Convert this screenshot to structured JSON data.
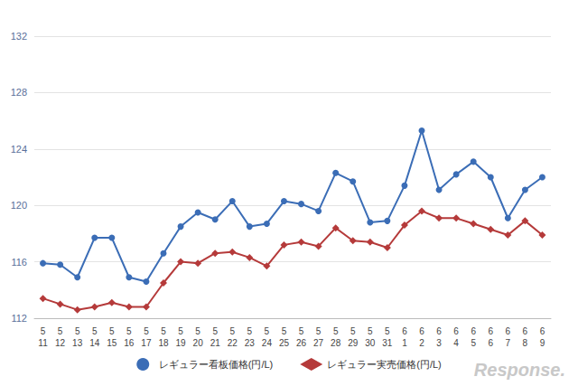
{
  "chart_data": {
    "type": "line",
    "categories": [
      "5\n11",
      "5\n12",
      "5\n13",
      "5\n14",
      "5\n15",
      "5\n16",
      "5\n17",
      "5\n18",
      "5\n19",
      "5\n20",
      "5\n21",
      "5\n22",
      "5\n23",
      "5\n24",
      "5\n25",
      "5\n26",
      "5\n27",
      "5\n28",
      "5\n29",
      "5\n30",
      "5\n31",
      "6\n1",
      "6\n2",
      "6\n3",
      "6\n4",
      "6\n5",
      "6\n6",
      "6\n7",
      "6\n8",
      "6\n9"
    ],
    "series": [
      {
        "name": "レギュラー看板価格(円/L)",
        "color": "#3b6db6",
        "marker": "circle",
        "values": [
          115.9,
          115.8,
          114.9,
          117.7,
          117.7,
          114.9,
          114.6,
          116.6,
          118.5,
          119.5,
          119.0,
          120.3,
          118.5,
          118.7,
          120.3,
          120.1,
          119.6,
          122.3,
          121.7,
          118.8,
          118.9,
          121.4,
          125.3,
          121.1,
          122.2,
          123.1,
          122.0,
          119.1,
          121.1,
          122.0
        ]
      },
      {
        "name": "レギュラー実売価格(円/L)",
        "color": "#b53a3a",
        "marker": "diamond",
        "values": [
          113.4,
          113.0,
          112.6,
          112.8,
          113.1,
          112.8,
          112.8,
          114.5,
          116.0,
          115.9,
          116.6,
          116.7,
          116.3,
          115.7,
          117.2,
          117.4,
          117.1,
          118.4,
          117.5,
          117.4,
          117.0,
          118.6,
          119.6,
          119.1,
          119.1,
          118.7,
          118.3,
          117.9,
          118.9,
          117.9
        ]
      }
    ],
    "ylim": [
      112,
      132
    ],
    "yticks": [
      112,
      116,
      120,
      124,
      128,
      132
    ],
    "grid": true,
    "legend": "bottom",
    "annotations": [
      "Response."
    ]
  }
}
